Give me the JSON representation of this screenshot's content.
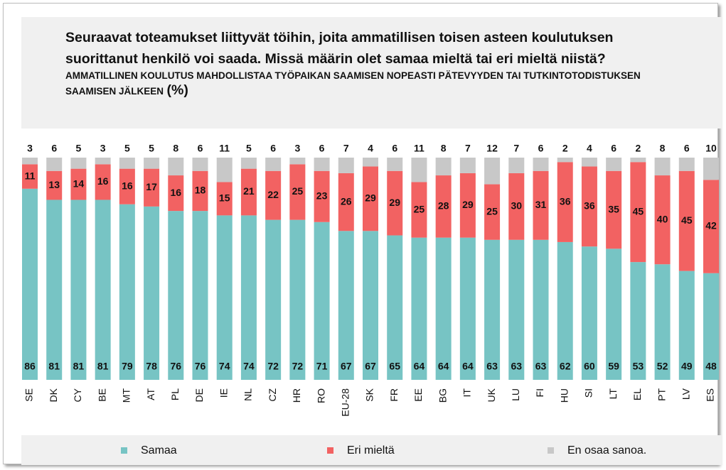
{
  "chart_data": {
    "type": "stacked-bar",
    "title": "Seuraavat toteamukset liittyvät töihin, joita ammatillisen toisen asteen koulutuksen suorittanut henkilö voi saada. Missä määrin olet samaa mieltä tai eri mieltä niistä?",
    "subtitle": "AMMATILLINEN KOULUTUS MAHDOLLISTAA TYÖPAIKAN SAAMISEN NOPEASTI PÄTEVYYDEN TAI TUTKINTOTODISTUKSEN SAAMISEN JÄLKEEN",
    "unit": "(%)",
    "categories": [
      "SE",
      "DK",
      "CY",
      "BE",
      "MT",
      "AT",
      "PL",
      "DE",
      "IE",
      "NL",
      "CZ",
      "HR",
      "RO",
      "EU-28",
      "SK",
      "FR",
      "EE",
      "BG",
      "IT",
      "UK",
      "LU",
      "FI",
      "HU",
      "SI",
      "LT",
      "EL",
      "PT",
      "LV",
      "ES"
    ],
    "series": [
      {
        "name": "Samaa",
        "color": "#77c4c4",
        "values": [
          86,
          81,
          81,
          81,
          79,
          78,
          76,
          76,
          74,
          74,
          72,
          72,
          71,
          67,
          67,
          65,
          64,
          64,
          64,
          63,
          63,
          63,
          62,
          60,
          59,
          53,
          52,
          49,
          48
        ]
      },
      {
        "name": "Eri mieltä",
        "color": "#f26262",
        "values": [
          11,
          13,
          14,
          16,
          16,
          17,
          16,
          18,
          15,
          21,
          22,
          25,
          23,
          26,
          29,
          29,
          25,
          28,
          29,
          25,
          30,
          31,
          36,
          36,
          35,
          45,
          40,
          45,
          42
        ]
      },
      {
        "name": "En osaa sanoa.",
        "color": "#c8c8c8",
        "values": [
          3,
          6,
          5,
          3,
          5,
          5,
          8,
          6,
          11,
          5,
          6,
          3,
          6,
          7,
          4,
          6,
          11,
          8,
          7,
          12,
          7,
          6,
          2,
          4,
          6,
          2,
          8,
          6,
          10
        ]
      }
    ]
  }
}
